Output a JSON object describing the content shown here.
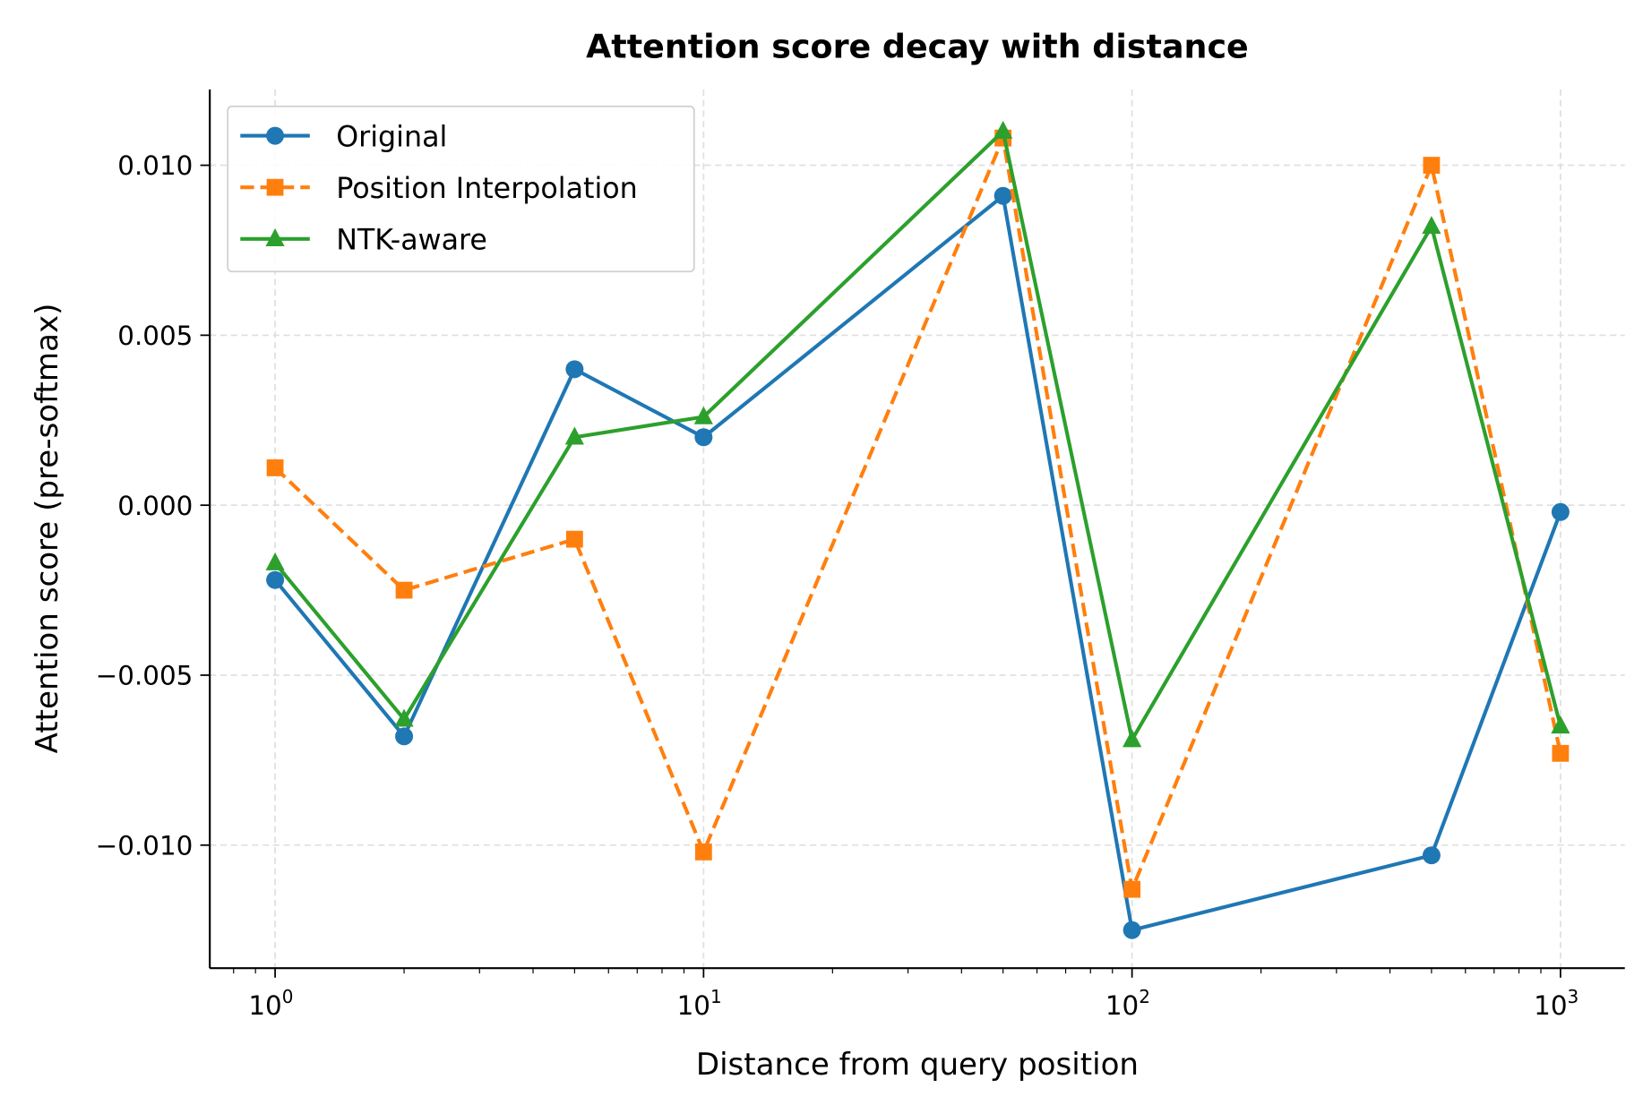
{
  "chart_data": {
    "type": "line",
    "title": "Attention score decay with distance",
    "xlabel": "Distance from query position",
    "ylabel": "Attention score (pre-softmax)",
    "xscale": "log",
    "xlim": [
      0.704,
      1413
    ],
    "ylim": [
      -0.01362,
      0.01223
    ],
    "x": [
      1,
      2,
      5,
      10,
      50,
      100,
      500,
      1000
    ],
    "xticks": [
      {
        "base": "10",
        "exp": "0",
        "value": 1
      },
      {
        "base": "10",
        "exp": "1",
        "value": 10
      },
      {
        "base": "10",
        "exp": "2",
        "value": 100
      },
      {
        "base": "10",
        "exp": "3",
        "value": 1000
      }
    ],
    "yticks": [
      {
        "label": "−0.010",
        "value": -0.01
      },
      {
        "label": "−0.005",
        "value": -0.005
      },
      {
        "label": "0.000",
        "value": 0
      },
      {
        "label": "0.005",
        "value": 0.005
      },
      {
        "label": "0.010",
        "value": 0.01
      }
    ],
    "grid": true,
    "legend_position": "top-left",
    "series": [
      {
        "name": "Original",
        "color": "#1f77b4",
        "marker": "circle",
        "dash": "solid",
        "values": [
          -0.0022,
          -0.0068,
          0.004,
          0.002,
          0.0091,
          -0.0125,
          -0.0103,
          -0.0002
        ]
      },
      {
        "name": "Position Interpolation",
        "color": "#ff7f0e",
        "marker": "square",
        "dash": "dashed",
        "values": [
          0.0011,
          -0.0025,
          -0.001,
          -0.0102,
          0.0108,
          -0.0113,
          0.01,
          -0.0073
        ]
      },
      {
        "name": "NTK-aware",
        "color": "#2ca02c",
        "marker": "triangle",
        "dash": "solid",
        "values": [
          -0.0017,
          -0.0063,
          0.002,
          0.0026,
          0.011,
          -0.0069,
          0.0082,
          -0.0065
        ]
      }
    ]
  }
}
